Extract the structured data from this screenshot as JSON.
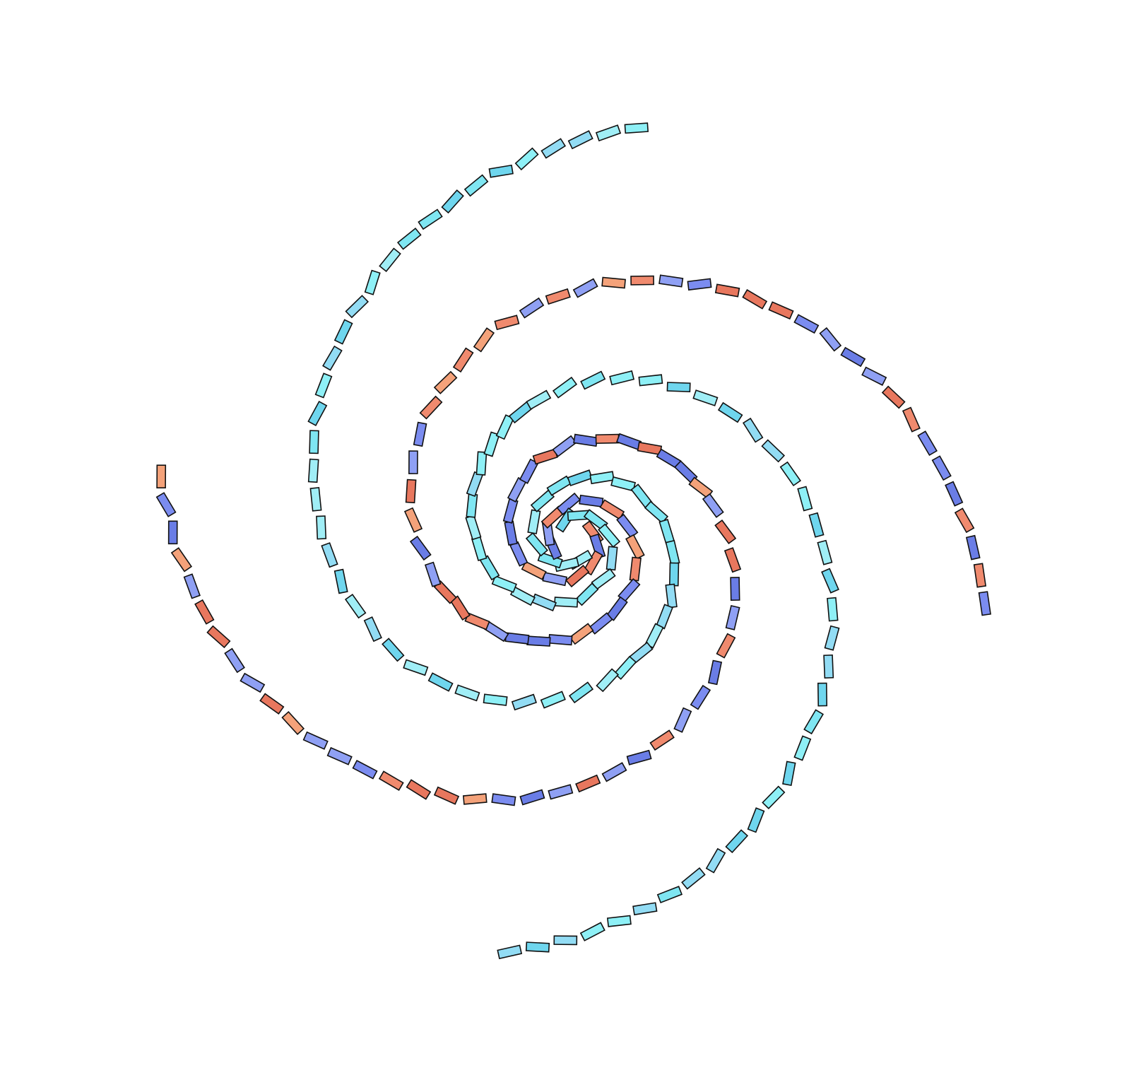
{
  "artwork": {
    "kind": "spiral-of-rectangles",
    "arm_count": 4,
    "arm_groups": [
      {
        "arms": [
          0,
          2
        ],
        "palette": "warm-blue",
        "colors": [
          "#7b8cf0",
          "#6a7de6",
          "#8fa0f4",
          "#f08a6e",
          "#f4a27a",
          "#e8775e"
        ]
      },
      {
        "arms": [
          1,
          3
        ],
        "palette": "cyan",
        "colors": [
          "#7fe6f2",
          "#8ef0f6",
          "#6fd6ee",
          "#92dcf4",
          "#a0eef6"
        ]
      }
    ],
    "background": "#ffffff",
    "outline": "#111111"
  }
}
